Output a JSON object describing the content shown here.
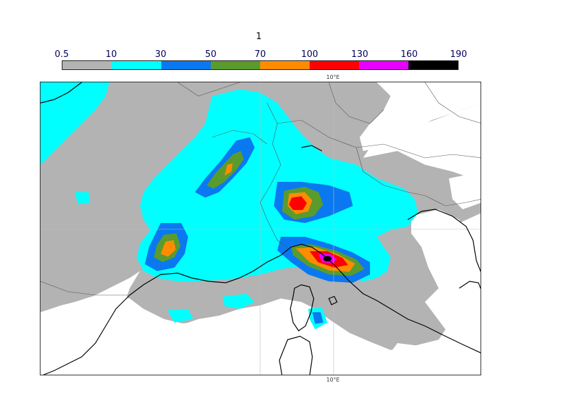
{
  "title": "1",
  "colorbar": {
    "ticks": [
      "0.5",
      "10",
      "30",
      "50",
      "70",
      "100",
      "130",
      "160",
      "190"
    ],
    "colors": [
      "#b3b3b3",
      "#00ffff",
      "#0a78f0",
      "#5a9b2d",
      "#ff8c00",
      "#ff0000",
      "#e600ff",
      "#000000"
    ]
  },
  "map": {
    "lon_label_top": "10°E",
    "lon_label_bottom": "10°E",
    "colors": {
      "land_white": "#ffffff",
      "gray": "#b3b3b3",
      "cyan": "#00ffff",
      "blue": "#0a78f0",
      "green": "#5a9b2d",
      "orange": "#ff8c00",
      "red": "#ff0000",
      "magenta": "#e600ff",
      "black": "#000000",
      "coast": "#000000",
      "border": "#555555",
      "grid": "#bbbbbb"
    }
  }
}
